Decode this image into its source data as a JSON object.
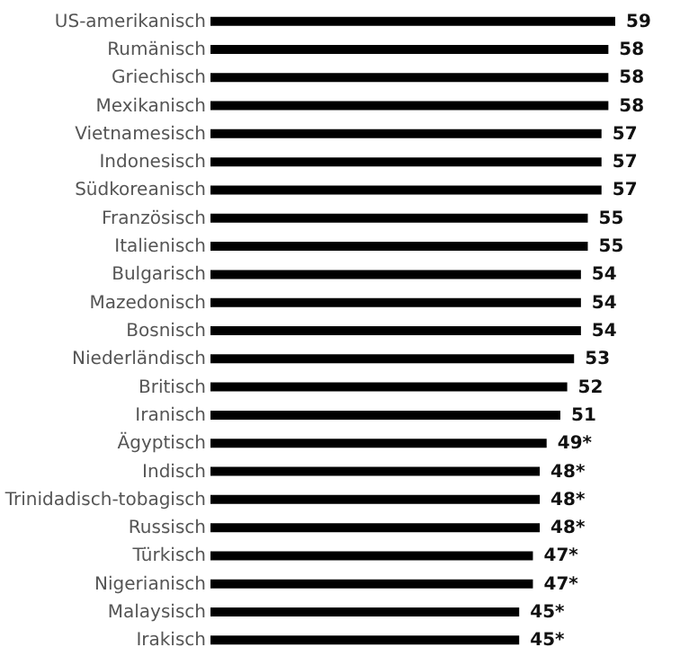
{
  "chart_data": {
    "type": "bar",
    "orientation": "horizontal",
    "categories": [
      "US-amerikanisch",
      "Rumänisch",
      "Griechisch",
      "Mexikanisch",
      "Vietnamesisch",
      "Indonesisch",
      "Südkoreanisch",
      "Französisch",
      "Italienisch",
      "Bulgarisch",
      "Mazedonisch",
      "Bosnisch",
      "Niederländisch",
      "Britisch",
      "Iranisch",
      "Ägyptisch",
      "Indisch",
      "Trinidadisch-tobagisch",
      "Russisch",
      "Türkisch",
      "Nigerianisch",
      "Malaysisch",
      "Irakisch"
    ],
    "values": [
      59,
      58,
      58,
      58,
      57,
      57,
      57,
      55,
      55,
      54,
      54,
      54,
      53,
      52,
      51,
      49,
      48,
      48,
      48,
      47,
      47,
      45,
      45
    ],
    "value_labels": [
      "59",
      "58",
      "58",
      "58",
      "57",
      "57",
      "57",
      "55",
      "55",
      "54",
      "54",
      "54",
      "53",
      "52",
      "51",
      "49*",
      "48*",
      "48*",
      "48*",
      "47*",
      "47*",
      "45*",
      "45*"
    ],
    "color": "#000000",
    "tick_labels": "y"
  }
}
